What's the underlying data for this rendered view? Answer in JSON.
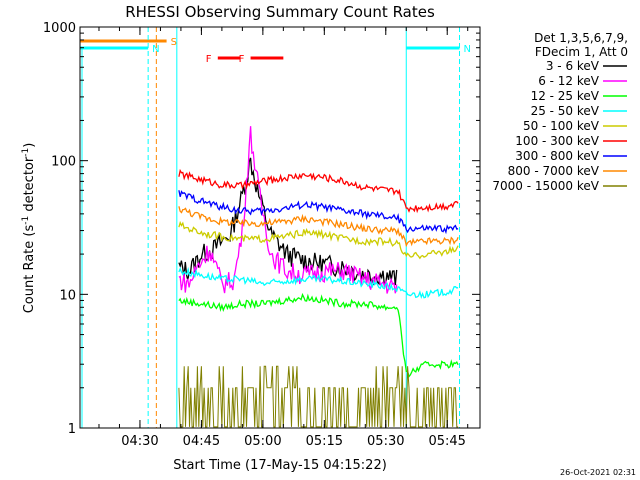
{
  "chart_data": {
    "type": "line",
    "title": "RHESSI Observing Summary Count Rates",
    "xlabel": "Start Time (17-May-15 04:15:22)",
    "ylabel_main": "Count Rate (s",
    "ylabel_sup1": "-1",
    "ylabel_mid": " detector",
    "ylabel_sup2": "-1",
    "ylabel_end": ")",
    "yscale": "log",
    "ylim": [
      1,
      1000
    ],
    "xlim": [
      "04:15:22",
      "05:53:00"
    ],
    "x_ticks": [
      "04:30",
      "04:45",
      "05:00",
      "05:15",
      "05:30",
      "05:45"
    ],
    "y_ticks": [
      "1",
      "10",
      "100",
      "1000"
    ],
    "legend_header": [
      "Det 1,3,5,6,7,9,",
      "FDecim 1, Att 0"
    ],
    "legend_placement": "right",
    "timestamp": "26-Oct-2021 02:31",
    "series": [
      {
        "name": "3 - 6 keV",
        "color": "#000000",
        "points": [
          [
            "04:39:30",
            16
          ],
          [
            "04:42:00",
            15
          ],
          [
            "04:45:00",
            20
          ],
          [
            "04:48:00",
            22
          ],
          [
            "04:52:00",
            28
          ],
          [
            "04:55:00",
            55
          ],
          [
            "04:57:00",
            100
          ],
          [
            "04:59:00",
            55
          ],
          [
            "05:02:00",
            28
          ],
          [
            "05:06:00",
            20
          ],
          [
            "05:10:00",
            18
          ],
          [
            "05:15:00",
            17
          ],
          [
            "05:20:00",
            16
          ],
          [
            "05:25:00",
            14
          ],
          [
            "05:30:00",
            14
          ],
          [
            "05:33:00",
            13
          ]
        ]
      },
      {
        "name": "6 - 12 keV",
        "color": "#ff00ff",
        "points": [
          [
            "04:39:30",
            13
          ],
          [
            "04:42:00",
            12
          ],
          [
            "04:44:00",
            16
          ],
          [
            "04:47:00",
            22
          ],
          [
            "04:50:00",
            12
          ],
          [
            "04:53:00",
            13
          ],
          [
            "04:55:00",
            30
          ],
          [
            "04:57:00",
            160
          ],
          [
            "04:59:00",
            60
          ],
          [
            "05:02:00",
            20
          ],
          [
            "05:06:00",
            15
          ],
          [
            "05:10:00",
            14
          ],
          [
            "05:15:00",
            15
          ],
          [
            "05:20:00",
            15
          ],
          [
            "05:25:00",
            13
          ],
          [
            "05:30:00",
            12
          ],
          [
            "05:33:00",
            11
          ]
        ]
      },
      {
        "name": "12 - 25 keV",
        "color": "#00ff00",
        "points": [
          [
            "04:39:30",
            9
          ],
          [
            "04:45:00",
            8.5
          ],
          [
            "04:50:00",
            8
          ],
          [
            "04:55:00",
            8.5
          ],
          [
            "05:00:00",
            8.5
          ],
          [
            "05:05:00",
            9
          ],
          [
            "05:10:00",
            9.5
          ],
          [
            "05:15:00",
            9
          ],
          [
            "05:20:00",
            8.5
          ],
          [
            "05:25:00",
            8.5
          ],
          [
            "05:30:00",
            8
          ],
          [
            "05:33:00",
            8
          ],
          [
            "05:35:00",
            2.5
          ],
          [
            "05:40:00",
            3
          ],
          [
            "05:45:00",
            3
          ],
          [
            "05:48:00",
            3
          ]
        ]
      },
      {
        "name": "25 - 50 keV",
        "color": "#00ffff",
        "points": [
          [
            "04:39:30",
            15
          ],
          [
            "04:45:00",
            14
          ],
          [
            "04:50:00",
            13
          ],
          [
            "04:55:00",
            13
          ],
          [
            "05:00:00",
            12
          ],
          [
            "05:05:00",
            12.5
          ],
          [
            "05:10:00",
            13
          ],
          [
            "05:15:00",
            13
          ],
          [
            "05:20:00",
            12.5
          ],
          [
            "05:25:00",
            12
          ],
          [
            "05:30:00",
            11.5
          ],
          [
            "05:33:00",
            11
          ],
          [
            "05:35:00",
            10
          ],
          [
            "05:40:00",
            10
          ],
          [
            "05:45:00",
            10.5
          ],
          [
            "05:48:00",
            11
          ]
        ]
      },
      {
        "name": "50 - 100 keV",
        "color": "#cccc00",
        "points": [
          [
            "04:39:30",
            33
          ],
          [
            "04:45:00",
            29
          ],
          [
            "04:50:00",
            27
          ],
          [
            "04:55:00",
            26
          ],
          [
            "05:00:00",
            26
          ],
          [
            "05:05:00",
            27
          ],
          [
            "05:10:00",
            29
          ],
          [
            "05:15:00",
            28
          ],
          [
            "05:20:00",
            26
          ],
          [
            "05:25:00",
            25
          ],
          [
            "05:30:00",
            25
          ],
          [
            "05:33:00",
            24
          ],
          [
            "05:35:00",
            19
          ],
          [
            "05:40:00",
            20
          ],
          [
            "05:45:00",
            21
          ],
          [
            "05:48:00",
            22
          ]
        ]
      },
      {
        "name": "100 - 300 keV",
        "color": "#ff0000",
        "points": [
          [
            "04:39:30",
            80
          ],
          [
            "04:45:00",
            72
          ],
          [
            "04:50:00",
            66
          ],
          [
            "04:55:00",
            65
          ],
          [
            "05:00:00",
            70
          ],
          [
            "05:05:00",
            74
          ],
          [
            "05:10:00",
            78
          ],
          [
            "05:15:00",
            75
          ],
          [
            "05:20:00",
            70
          ],
          [
            "05:25:00",
            63
          ],
          [
            "05:30:00",
            60
          ],
          [
            "05:33:00",
            59
          ],
          [
            "05:35:00",
            44
          ],
          [
            "05:40:00",
            45
          ],
          [
            "05:45:00",
            46
          ],
          [
            "05:48:00",
            50
          ]
        ]
      },
      {
        "name": "300 - 800 keV",
        "color": "#0000ff",
        "points": [
          [
            "04:39:30",
            57
          ],
          [
            "04:45:00",
            50
          ],
          [
            "04:50:00",
            45
          ],
          [
            "04:55:00",
            42
          ],
          [
            "05:00:00",
            42
          ],
          [
            "05:05:00",
            44
          ],
          [
            "05:10:00",
            47
          ],
          [
            "05:15:00",
            45
          ],
          [
            "05:20:00",
            42
          ],
          [
            "05:25:00",
            40
          ],
          [
            "05:30:00",
            38
          ],
          [
            "05:33:00",
            37
          ],
          [
            "05:35:00",
            31
          ],
          [
            "05:40:00",
            31
          ],
          [
            "05:45:00",
            31
          ],
          [
            "05:48:00",
            31
          ]
        ]
      },
      {
        "name": "800 - 7000 keV",
        "color": "#ff8800",
        "points": [
          [
            "04:39:30",
            44
          ],
          [
            "04:45:00",
            38
          ],
          [
            "04:50:00",
            35
          ],
          [
            "04:55:00",
            34
          ],
          [
            "05:00:00",
            34
          ],
          [
            "05:05:00",
            35
          ],
          [
            "05:10:00",
            37
          ],
          [
            "05:15:00",
            35
          ],
          [
            "05:20:00",
            33
          ],
          [
            "05:25:00",
            31
          ],
          [
            "05:30:00",
            30
          ],
          [
            "05:33:00",
            30
          ],
          [
            "05:35:00",
            24
          ],
          [
            "05:40:00",
            25
          ],
          [
            "05:45:00",
            25
          ],
          [
            "05:48:00",
            26
          ]
        ]
      },
      {
        "name": "7000 - 15000 keV",
        "color": "#808000",
        "points": [
          [
            "04:39:30",
            2
          ],
          [
            "04:45:00",
            1.5
          ],
          [
            "04:50:00",
            2
          ],
          [
            "04:55:00",
            1.5
          ],
          [
            "05:00:00",
            2
          ],
          [
            "05:05:00",
            1.5
          ],
          [
            "05:10:00",
            2.5
          ],
          [
            "05:15:00",
            2
          ],
          [
            "05:20:00",
            1.5
          ],
          [
            "05:25:00",
            2
          ],
          [
            "05:30:00",
            1.5
          ],
          [
            "05:33:00",
            2
          ],
          [
            "05:40:00",
            2
          ],
          [
            "05:48:00",
            2
          ]
        ]
      }
    ],
    "flag_lines": [
      {
        "label": "S",
        "color": "#ff8800",
        "start": "04:15:22",
        "end": "04:36:30"
      },
      {
        "label": "N",
        "color": "#00ffff",
        "start": "04:15:22",
        "end": "04:32:00"
      },
      {
        "label": "N",
        "color": "#00ffff",
        "start": "05:35:00",
        "end": "05:48:00"
      },
      {
        "label": "F",
        "color": "#ff0000",
        "start": "04:49:00",
        "end": "04:54:30"
      },
      {
        "label": "F",
        "color": "#ff0000",
        "start": "04:57:00",
        "end": "05:05:00"
      }
    ],
    "vlines": [
      {
        "time": "04:32:00",
        "color": "#00ffff",
        "style": "dashed"
      },
      {
        "time": "04:34:00",
        "color": "#ff8800",
        "style": "dashed"
      },
      {
        "time": "04:39:00",
        "color": "#00ffff",
        "style": "solid"
      },
      {
        "time": "05:35:00",
        "color": "#00ffff",
        "style": "solid"
      },
      {
        "time": "05:48:00",
        "color": "#00ffff",
        "style": "dashed"
      }
    ]
  }
}
